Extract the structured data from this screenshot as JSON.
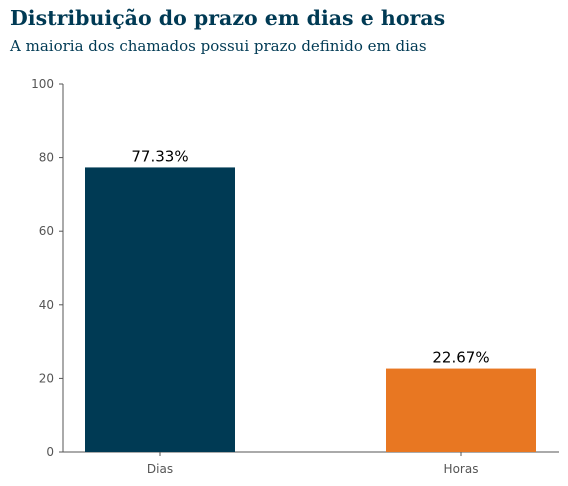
{
  "chart_data": {
    "type": "bar",
    "title": "Distribuição do prazo em dias e horas",
    "subtitle": "A maioria dos chamados possui prazo definido em dias",
    "categories": [
      "Dias",
      "Horas"
    ],
    "values": [
      77.33,
      22.67
    ],
    "data_labels": [
      "77.33%",
      "22.67%"
    ],
    "bar_colors": [
      "#003a54",
      "#e87722"
    ],
    "xlabel": "",
    "ylabel": "",
    "ylim": [
      0,
      100
    ],
    "yticks": [
      0,
      20,
      40,
      60,
      80,
      100
    ],
    "grid": false,
    "legend": "none"
  }
}
